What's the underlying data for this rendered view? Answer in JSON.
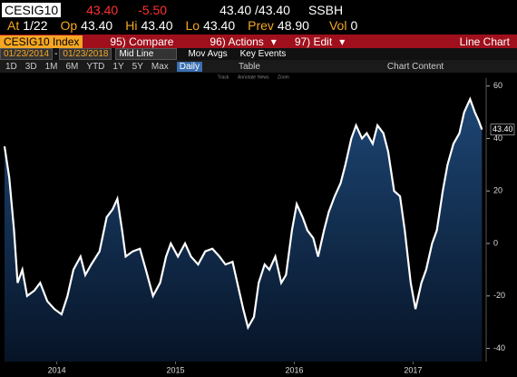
{
  "header": {
    "ticker": "CESIG10",
    "last": "43.40",
    "change": "-5.50",
    "bid_ask": "43.40 /43.40",
    "source": "SSBH",
    "row2": [
      [
        "At",
        "1/22"
      ],
      [
        "Op",
        "43.40"
      ],
      [
        "Hi",
        "43.40"
      ],
      [
        "Lo",
        "43.40"
      ],
      [
        "Prev",
        "48.90"
      ],
      [
        "Vol",
        "0"
      ]
    ]
  },
  "toolbar": {
    "security": "CESIG10 Index",
    "compare": "95) Compare",
    "actions": "96) Actions",
    "edit": "97) Edit",
    "view": "Line Chart",
    "start_date": "01/23/2014",
    "dash": "-",
    "end_date": "01/23/2018",
    "line_mode": "Mid Line",
    "mov_avgs": "Mov Avgs",
    "key_events": "Key Events",
    "ranges": [
      "1D",
      "3D",
      "1M",
      "6M",
      "YTD",
      "1Y",
      "5Y",
      "Max"
    ],
    "frequency": "Daily",
    "table": "Table",
    "chart_content": "Chart Content",
    "tools": [
      "Track",
      "Annotate",
      "News",
      "Zoom"
    ]
  },
  "chart_data": {
    "type": "area",
    "last_price_tag": "43.40",
    "color": "#ffffff",
    "fill": "#173a63",
    "x": [
      2014.06,
      2014.1,
      2014.14,
      2014.17,
      2014.21,
      2014.25,
      2014.31,
      2014.36,
      2014.42,
      2014.48,
      2014.54,
      2014.59,
      2014.64,
      2014.7,
      2014.74,
      2014.79,
      2014.86,
      2014.92,
      2014.97,
      2015.01,
      2015.05,
      2015.08,
      2015.14,
      2015.2,
      2015.25,
      2015.31,
      2015.37,
      2015.42,
      2015.46,
      2015.52,
      2015.58,
      2015.63,
      2015.69,
      2015.75,
      2015.81,
      2015.87,
      2015.92,
      2015.98,
      2016.02,
      2016.07,
      2016.11,
      2016.16,
      2016.2,
      2016.25,
      2016.29,
      2016.34,
      2016.39,
      2016.43,
      2016.48,
      2016.52,
      2016.57,
      2016.61,
      2016.66,
      2016.7,
      2016.75,
      2016.79,
      2016.84,
      2016.89,
      2016.93,
      2016.98,
      2017.02,
      2017.07,
      2017.11,
      2017.16,
      2017.2,
      2017.25,
      2017.29,
      2017.34,
      2017.39,
      2017.43,
      2017.48,
      2017.52,
      2017.57,
      2017.61,
      2017.66,
      2017.7,
      2017.75,
      2017.79,
      2017.84,
      2017.89,
      2017.93,
      2017.98,
      2018.02,
      2018.05,
      2018.08
    ],
    "values": [
      37,
      25,
      5,
      -15,
      -10,
      -20,
      -18,
      -15,
      -22,
      -25,
      -27,
      -20,
      -10,
      -5,
      -12,
      -8,
      -3,
      10,
      13,
      17,
      5,
      -5,
      -3,
      -2,
      -10,
      -20,
      -15,
      -5,
      0,
      -5,
      0,
      -5,
      -8,
      -3,
      -2,
      -5,
      -8,
      -7,
      -15,
      -25,
      -32,
      -28,
      -15,
      -8,
      -10,
      -5,
      -15,
      -12,
      5,
      15,
      10,
      5,
      2,
      -5,
      5,
      12,
      18,
      23,
      30,
      40,
      45,
      40,
      42,
      38,
      45,
      42,
      35,
      20,
      18,
      5,
      -15,
      -25,
      -15,
      -10,
      0,
      5,
      20,
      30,
      38,
      42,
      50,
      55,
      50,
      47,
      43.4
    ],
    "xlim": [
      2014.06,
      2018.1
    ],
    "ylim": [
      -45,
      63
    ],
    "xticks": [
      {
        "value": 2014.5,
        "label": "2014"
      },
      {
        "value": 2015.5,
        "label": "2015"
      },
      {
        "value": 2016.5,
        "label": "2016"
      },
      {
        "value": 2017.5,
        "label": "2017"
      }
    ],
    "yticks": [
      -40,
      -20,
      0,
      20,
      40,
      60
    ]
  }
}
